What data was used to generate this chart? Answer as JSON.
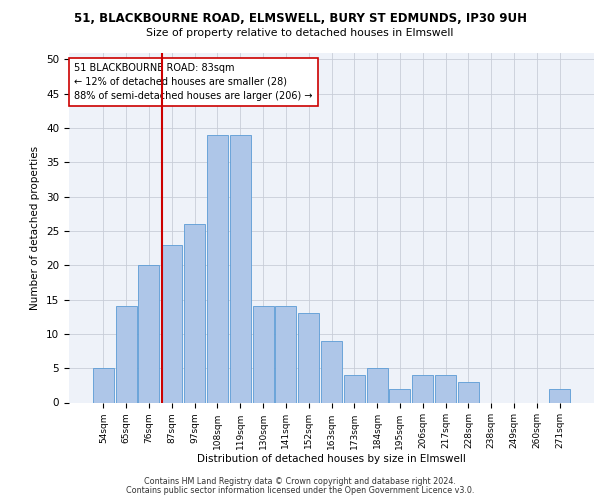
{
  "title": "51, BLACKBOURNE ROAD, ELMSWELL, BURY ST EDMUNDS, IP30 9UH",
  "subtitle": "Size of property relative to detached houses in Elmswell",
  "xlabel": "Distribution of detached houses by size in Elmswell",
  "ylabel": "Number of detached properties",
  "bar_labels": [
    "54sqm",
    "65sqm",
    "76sqm",
    "87sqm",
    "97sqm",
    "108sqm",
    "119sqm",
    "130sqm",
    "141sqm",
    "152sqm",
    "163sqm",
    "173sqm",
    "184sqm",
    "195sqm",
    "206sqm",
    "217sqm",
    "228sqm",
    "238sqm",
    "249sqm",
    "260sqm",
    "271sqm"
  ],
  "bar_values": [
    5,
    14,
    20,
    23,
    26,
    39,
    39,
    14,
    14,
    13,
    9,
    4,
    5,
    2,
    4,
    4,
    3,
    0,
    0,
    0,
    2
  ],
  "bar_color": "#aec6e8",
  "bar_edge_color": "#5b9bd5",
  "vline_color": "#cc0000",
  "annotation_text": "51 BLACKBOURNE ROAD: 83sqm\n← 12% of detached houses are smaller (28)\n88% of semi-detached houses are larger (206) →",
  "annotation_box_color": "#ffffff",
  "annotation_box_edge": "#cc0000",
  "ylim": [
    0,
    51
  ],
  "yticks": [
    0,
    5,
    10,
    15,
    20,
    25,
    30,
    35,
    40,
    45,
    50
  ],
  "bg_color": "#eef2f9",
  "footnote1": "Contains HM Land Registry data © Crown copyright and database right 2024.",
  "footnote2": "Contains public sector information licensed under the Open Government Licence v3.0."
}
